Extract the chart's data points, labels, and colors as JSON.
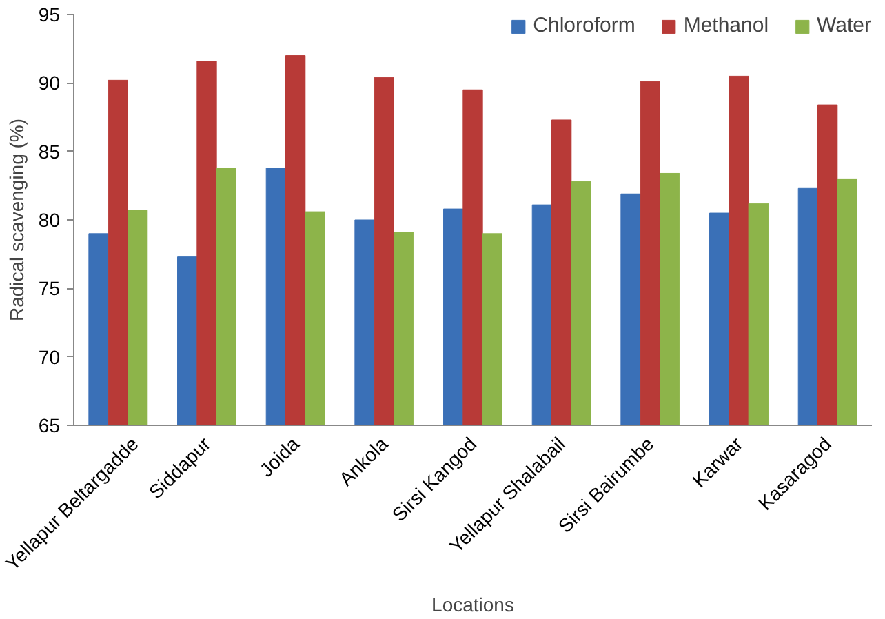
{
  "chart_data": {
    "type": "bar",
    "xlabel": "Locations",
    "ylabel": "Radical scavenging (%)",
    "categories": [
      "Yellapur Beltargadde",
      "Siddapur",
      "Joida",
      "Ankola",
      "Sirsi Kangod",
      "Yellapur Shalabail",
      "Sirsi Bairumbe",
      "Karwar",
      "Kasaragod"
    ],
    "series": [
      {
        "name": "Chloroform",
        "color": "#3a70b7",
        "values": [
          79.0,
          77.3,
          83.8,
          80.0,
          80.8,
          81.1,
          81.9,
          80.5,
          82.3
        ]
      },
      {
        "name": "Methanol",
        "color": "#b83a37",
        "values": [
          90.2,
          91.6,
          92.0,
          90.4,
          89.5,
          87.3,
          90.1,
          90.5,
          88.4
        ]
      },
      {
        "name": "Water",
        "color": "#8db44a",
        "values": [
          80.7,
          83.8,
          80.6,
          79.1,
          79.0,
          82.8,
          83.4,
          81.2,
          83.0
        ]
      }
    ],
    "ylim": [
      65,
      95
    ],
    "yticks": [
      65,
      70,
      75,
      80,
      85,
      90,
      95
    ],
    "grid": false,
    "legend": "top right"
  }
}
